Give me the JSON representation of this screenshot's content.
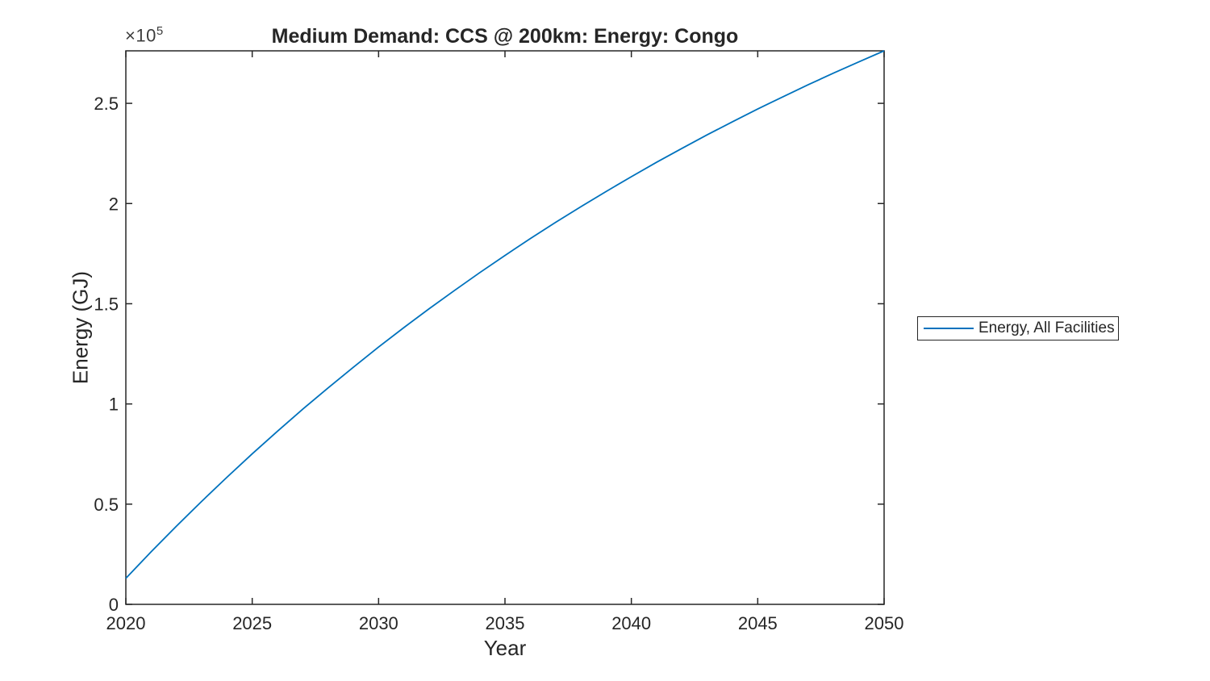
{
  "figure": {
    "title": "Medium Demand: CCS @ 200km: Energy: Congo",
    "xlabel": "Year",
    "ylabel": "Energy (GJ)",
    "y_exponent_base": "×10",
    "y_exponent_power": "5"
  },
  "legend": {
    "position": "right-outside",
    "entries": [
      {
        "label": "Energy, All Facilities",
        "color": "#0072BD"
      }
    ]
  },
  "colors": {
    "line": "#0072BD",
    "axis": "#262626",
    "background": "#ffffff"
  },
  "chart_data": {
    "type": "line",
    "title": "Medium Demand: CCS @ 200km: Energy: Congo",
    "xlabel": "Year",
    "ylabel": "Energy (GJ)",
    "grid": false,
    "legend_position": "right-outside",
    "xlim": [
      2020,
      2050
    ],
    "ylim": [
      0,
      276200
    ],
    "xticks": [
      2020,
      2025,
      2030,
      2035,
      2040,
      2045,
      2050
    ],
    "yticks": [
      0,
      50000,
      100000,
      150000,
      200000,
      250000
    ],
    "ytick_labels": [
      "0",
      "0.5",
      "1",
      "1.5",
      "2",
      "2.5"
    ],
    "y_multiplier": 100000,
    "x": [
      2020,
      2021,
      2022,
      2023,
      2024,
      2025,
      2026,
      2027,
      2028,
      2029,
      2030,
      2031,
      2032,
      2033,
      2034,
      2035,
      2036,
      2037,
      2038,
      2039,
      2040,
      2041,
      2042,
      2043,
      2044,
      2045,
      2046,
      2047,
      2048,
      2049,
      2050
    ],
    "series": [
      {
        "name": "Energy, All Facilities",
        "color": "#0072BD",
        "values": [
          13000,
          26200,
          39000,
          51400,
          63400,
          75100,
          86400,
          97400,
          108000,
          118300,
          128400,
          138100,
          147500,
          156600,
          165500,
          174100,
          182500,
          190600,
          198400,
          206000,
          213400,
          220600,
          227500,
          234300,
          240800,
          247200,
          253300,
          259300,
          265100,
          270700,
          276200
        ]
      }
    ]
  }
}
